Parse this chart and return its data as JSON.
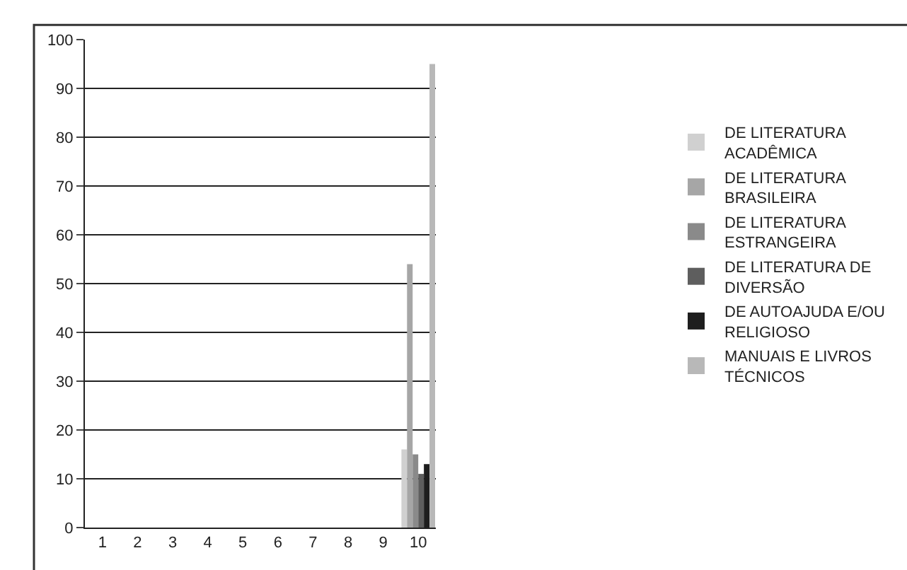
{
  "chart_data": {
    "type": "bar",
    "categories": [
      "1",
      "2",
      "3",
      "4",
      "5",
      "6",
      "7",
      "8",
      "9",
      "10"
    ],
    "series": [
      {
        "name": "DE LITERATURA ACADÊMICA",
        "color": "#d0d0d0",
        "values": [
          null,
          null,
          null,
          null,
          null,
          null,
          null,
          null,
          null,
          16
        ]
      },
      {
        "name": "DE LITERATURA BRASILEIRA",
        "color": "#a6a6a6",
        "values": [
          null,
          null,
          null,
          null,
          null,
          null,
          null,
          null,
          null,
          54
        ]
      },
      {
        "name": "DE LITERATURA ESTRANGEIRA",
        "color": "#8a8a8a",
        "values": [
          null,
          null,
          null,
          null,
          null,
          null,
          null,
          null,
          null,
          15
        ]
      },
      {
        "name": "DE LITERATURA DE DIVERSÃO",
        "color": "#5e5e5e",
        "values": [
          null,
          null,
          null,
          null,
          null,
          null,
          null,
          null,
          null,
          11
        ]
      },
      {
        "name": "DE AUTOAJUDA E/OU RELIGIOSO",
        "color": "#1e1e1e",
        "values": [
          null,
          null,
          null,
          null,
          null,
          null,
          null,
          null,
          null,
          13
        ]
      },
      {
        "name": "MANUAIS E LIVROS TÉCNICOS",
        "color": "#b8b8b8",
        "values": [
          null,
          null,
          null,
          null,
          null,
          null,
          null,
          null,
          null,
          95
        ]
      }
    ],
    "ylim": [
      0,
      100
    ],
    "yticks": [
      0,
      10,
      20,
      30,
      40,
      50,
      60,
      70,
      80,
      90,
      100
    ],
    "grid": "y",
    "legend": "right"
  }
}
